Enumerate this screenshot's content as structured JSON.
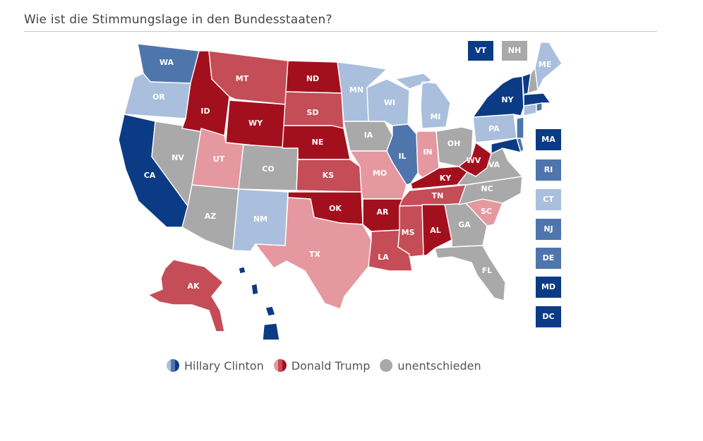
{
  "title": "Wie ist die Stimmungslage in den Bundesstaaten?",
  "colors": {
    "safe_d": "#0b3b84",
    "likely_d": "#4f75ad",
    "lean_d": "#a9bfdd",
    "safe_r": "#a3101d",
    "likely_r": "#c44d57",
    "lean_r": "#e5989f",
    "tossup": "#a9a9a9"
  },
  "states": {
    "WA": {
      "label": "WA",
      "rating": "likely_d"
    },
    "OR": {
      "label": "OR",
      "rating": "lean_d"
    },
    "CA": {
      "label": "CA",
      "rating": "safe_d"
    },
    "NV": {
      "label": "NV",
      "rating": "tossup"
    },
    "ID": {
      "label": "ID",
      "rating": "safe_r"
    },
    "MT": {
      "label": "MT",
      "rating": "likely_r"
    },
    "WY": {
      "label": "WY",
      "rating": "safe_r"
    },
    "UT": {
      "label": "UT",
      "rating": "lean_r"
    },
    "AZ": {
      "label": "AZ",
      "rating": "tossup"
    },
    "CO": {
      "label": "CO",
      "rating": "tossup"
    },
    "NM": {
      "label": "NM",
      "rating": "lean_d"
    },
    "ND": {
      "label": "ND",
      "rating": "safe_r"
    },
    "SD": {
      "label": "SD",
      "rating": "likely_r"
    },
    "NE": {
      "label": "NE",
      "rating": "safe_r"
    },
    "KS": {
      "label": "KS",
      "rating": "likely_r"
    },
    "OK": {
      "label": "OK",
      "rating": "safe_r"
    },
    "TX": {
      "label": "TX",
      "rating": "lean_r"
    },
    "MN": {
      "label": "MN",
      "rating": "lean_d"
    },
    "IA": {
      "label": "IA",
      "rating": "tossup"
    },
    "MO": {
      "label": "MO",
      "rating": "lean_r"
    },
    "AR": {
      "label": "AR",
      "rating": "safe_r"
    },
    "LA": {
      "label": "LA",
      "rating": "likely_r"
    },
    "WI": {
      "label": "WI",
      "rating": "lean_d"
    },
    "IL": {
      "label": "IL",
      "rating": "likely_d"
    },
    "MS": {
      "label": "MS",
      "rating": "likely_r"
    },
    "MI": {
      "label": "MI",
      "rating": "lean_d"
    },
    "IN": {
      "label": "IN",
      "rating": "lean_r"
    },
    "KY": {
      "label": "KY",
      "rating": "safe_r"
    },
    "TN": {
      "label": "TN",
      "rating": "likely_r"
    },
    "AL": {
      "label": "AL",
      "rating": "safe_r"
    },
    "OH": {
      "label": "OH",
      "rating": "tossup"
    },
    "WV": {
      "label": "WV",
      "rating": "safe_r"
    },
    "VA": {
      "label": "VA",
      "rating": "tossup"
    },
    "NC": {
      "label": "NC",
      "rating": "tossup"
    },
    "SC": {
      "label": "SC",
      "rating": "lean_r"
    },
    "GA": {
      "label": "GA",
      "rating": "tossup"
    },
    "FL": {
      "label": "FL",
      "rating": "tossup"
    },
    "PA": {
      "label": "PA",
      "rating": "lean_d"
    },
    "NY": {
      "label": "NY",
      "rating": "safe_d"
    },
    "ME": {
      "label": "ME",
      "rating": "lean_d"
    },
    "AK": {
      "label": "AK",
      "rating": "likely_r"
    },
    "HI": {
      "label": "",
      "rating": "safe_d"
    }
  },
  "small_states": {
    "VT": {
      "label": "VT",
      "rating": "safe_d"
    },
    "NH": {
      "label": "NH",
      "rating": "tossup"
    },
    "MA": {
      "label": "MA",
      "rating": "safe_d"
    },
    "RI": {
      "label": "RI",
      "rating": "likely_d"
    },
    "CT": {
      "label": "CT",
      "rating": "lean_d"
    },
    "NJ": {
      "label": "NJ",
      "rating": "likely_d"
    },
    "DE": {
      "label": "DE",
      "rating": "likely_d"
    },
    "MD": {
      "label": "MD",
      "rating": "safe_d"
    },
    "DC": {
      "label": "DC",
      "rating": "safe_d"
    }
  },
  "legend": {
    "clinton": "Hillary Clinton",
    "trump": "Donald Trump",
    "undecided": "unentschieden"
  }
}
